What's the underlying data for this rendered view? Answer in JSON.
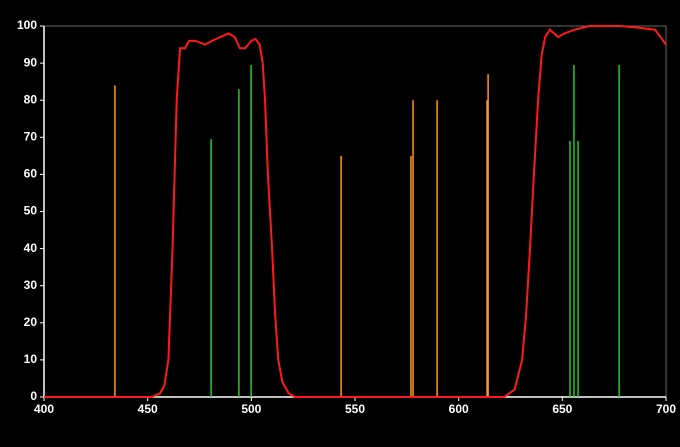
{
  "chart_data": {
    "type": "line",
    "background": "#000000",
    "xlim": [
      400,
      700
    ],
    "xticks": [
      400,
      450,
      500,
      550,
      600,
      650,
      700
    ],
    "ylim": [
      0,
      100
    ],
    "yticks": [
      0,
      10,
      20,
      30,
      40,
      50,
      60,
      70,
      80,
      90,
      100
    ],
    "series": [
      {
        "color": "#ff1a1a",
        "style": "curve",
        "x": [
          400,
          440,
          452,
          456,
          458,
          460,
          462,
          464,
          465.6,
          468,
          470,
          473,
          477.7,
          481,
          485,
          489,
          492,
          494.5,
          497,
          500,
          502,
          504,
          505.5,
          506.6,
          508,
          510,
          511.5,
          513,
          515,
          518,
          521,
          530,
          600,
          622,
          627,
          630.6,
          632.5,
          634.4,
          636.5,
          638.3,
          640,
          641.7,
          644,
          648,
          651,
          656,
          663,
          678,
          687.5,
          694.7,
          700
        ],
        "values": [
          0,
          0,
          0,
          1,
          3,
          10,
          40,
          80,
          94,
          94,
          96,
          96,
          95,
          96,
          97,
          98,
          97,
          94,
          94,
          96,
          96.5,
          95,
          90,
          80,
          60,
          40,
          22,
          10,
          4,
          1,
          0,
          0,
          0,
          0,
          2,
          10,
          22,
          40,
          62,
          80,
          92,
          97,
          99,
          97,
          98,
          99,
          100,
          100,
          99.5,
          99,
          95
        ]
      },
      {
        "color": "#ff9922",
        "style": "spikes",
        "x": [
          434.2,
          543.3,
          577,
          578,
          589.6,
          613.7,
          614.2
        ],
        "values": [
          84,
          65,
          65,
          80,
          80,
          80,
          87
        ]
      },
      {
        "color": "#22cc22",
        "style": "spikes",
        "x": [
          480.6,
          494,
          499.9,
          653.7,
          655.6,
          657.6,
          677.4
        ],
        "values": [
          69.5,
          83,
          89.5,
          69,
          89.5,
          69,
          89.5
        ]
      }
    ]
  }
}
